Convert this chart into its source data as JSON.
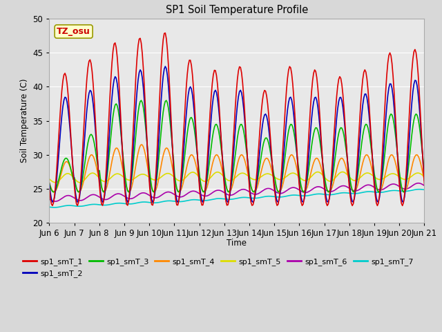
{
  "title": "SP1 Soil Temperature Profile",
  "xlabel": "Time",
  "ylabel": "Soil Temperature (C)",
  "ylim": [
    20,
    50
  ],
  "xtick_labels": [
    "Jun 6",
    "Jun 7",
    "Jun 8",
    "Jun 9",
    "Jun 10",
    "Jun 11",
    "Jun 12",
    "Jun 13",
    "Jun 14",
    "Jun 15",
    "Jun 16",
    "Jun 17",
    "Jun 18",
    "Jun 19",
    "Jun 20",
    "Jun 21"
  ],
  "annotation_text": "TZ_osu",
  "annotation_color": "#cc0000",
  "annotation_bg": "#ffffcc",
  "annotation_border": "#999900",
  "series_colors": {
    "sp1_smT_1": "#dd0000",
    "sp1_smT_2": "#0000bb",
    "sp1_smT_3": "#00bb00",
    "sp1_smT_4": "#ff8800",
    "sp1_smT_5": "#dddd00",
    "sp1_smT_6": "#aa00aa",
    "sp1_smT_7": "#00cccc"
  },
  "fig_bg": "#d8d8d8",
  "plot_bg": "#e8e8e8",
  "grid_color": "#ffffff"
}
